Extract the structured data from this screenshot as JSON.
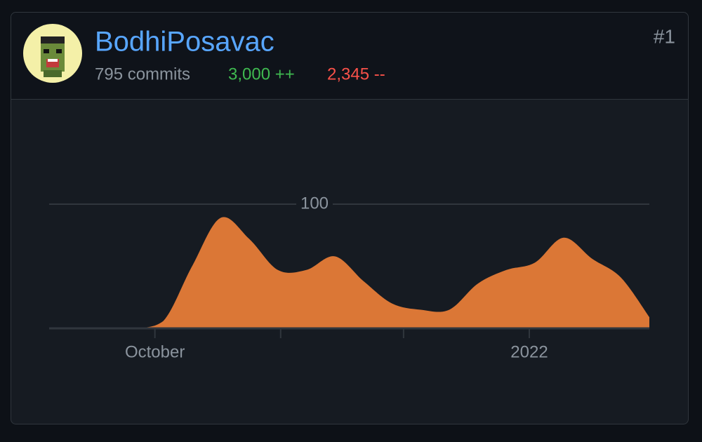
{
  "user": {
    "name": "BodhiPosavac",
    "rank": "#1",
    "commits": "795 commits",
    "additions": "3,000 ++",
    "deletions": "2,345 --"
  },
  "chart_data": {
    "type": "area",
    "color": "#db7736",
    "x": [
      0,
      1,
      2,
      3,
      4,
      5,
      6,
      7,
      8,
      9,
      10,
      11,
      12,
      13,
      14,
      15,
      16,
      17,
      18,
      19,
      20,
      21
    ],
    "values": [
      0,
      0,
      0,
      0,
      6,
      50,
      89,
      72,
      47,
      47,
      58,
      38,
      20,
      15,
      15,
      36,
      47,
      53,
      73,
      56,
      41,
      9
    ],
    "xlim": [
      0,
      21
    ],
    "xticks": [
      {
        "value": 3.7,
        "label": "October"
      },
      {
        "value": 8.1,
        "label": null
      },
      {
        "value": 12.4,
        "label": null
      },
      {
        "value": 16.8,
        "label": "2022"
      }
    ],
    "ylim": [
      0,
      180
    ],
    "yticks": [
      100
    ],
    "grid": true
  }
}
